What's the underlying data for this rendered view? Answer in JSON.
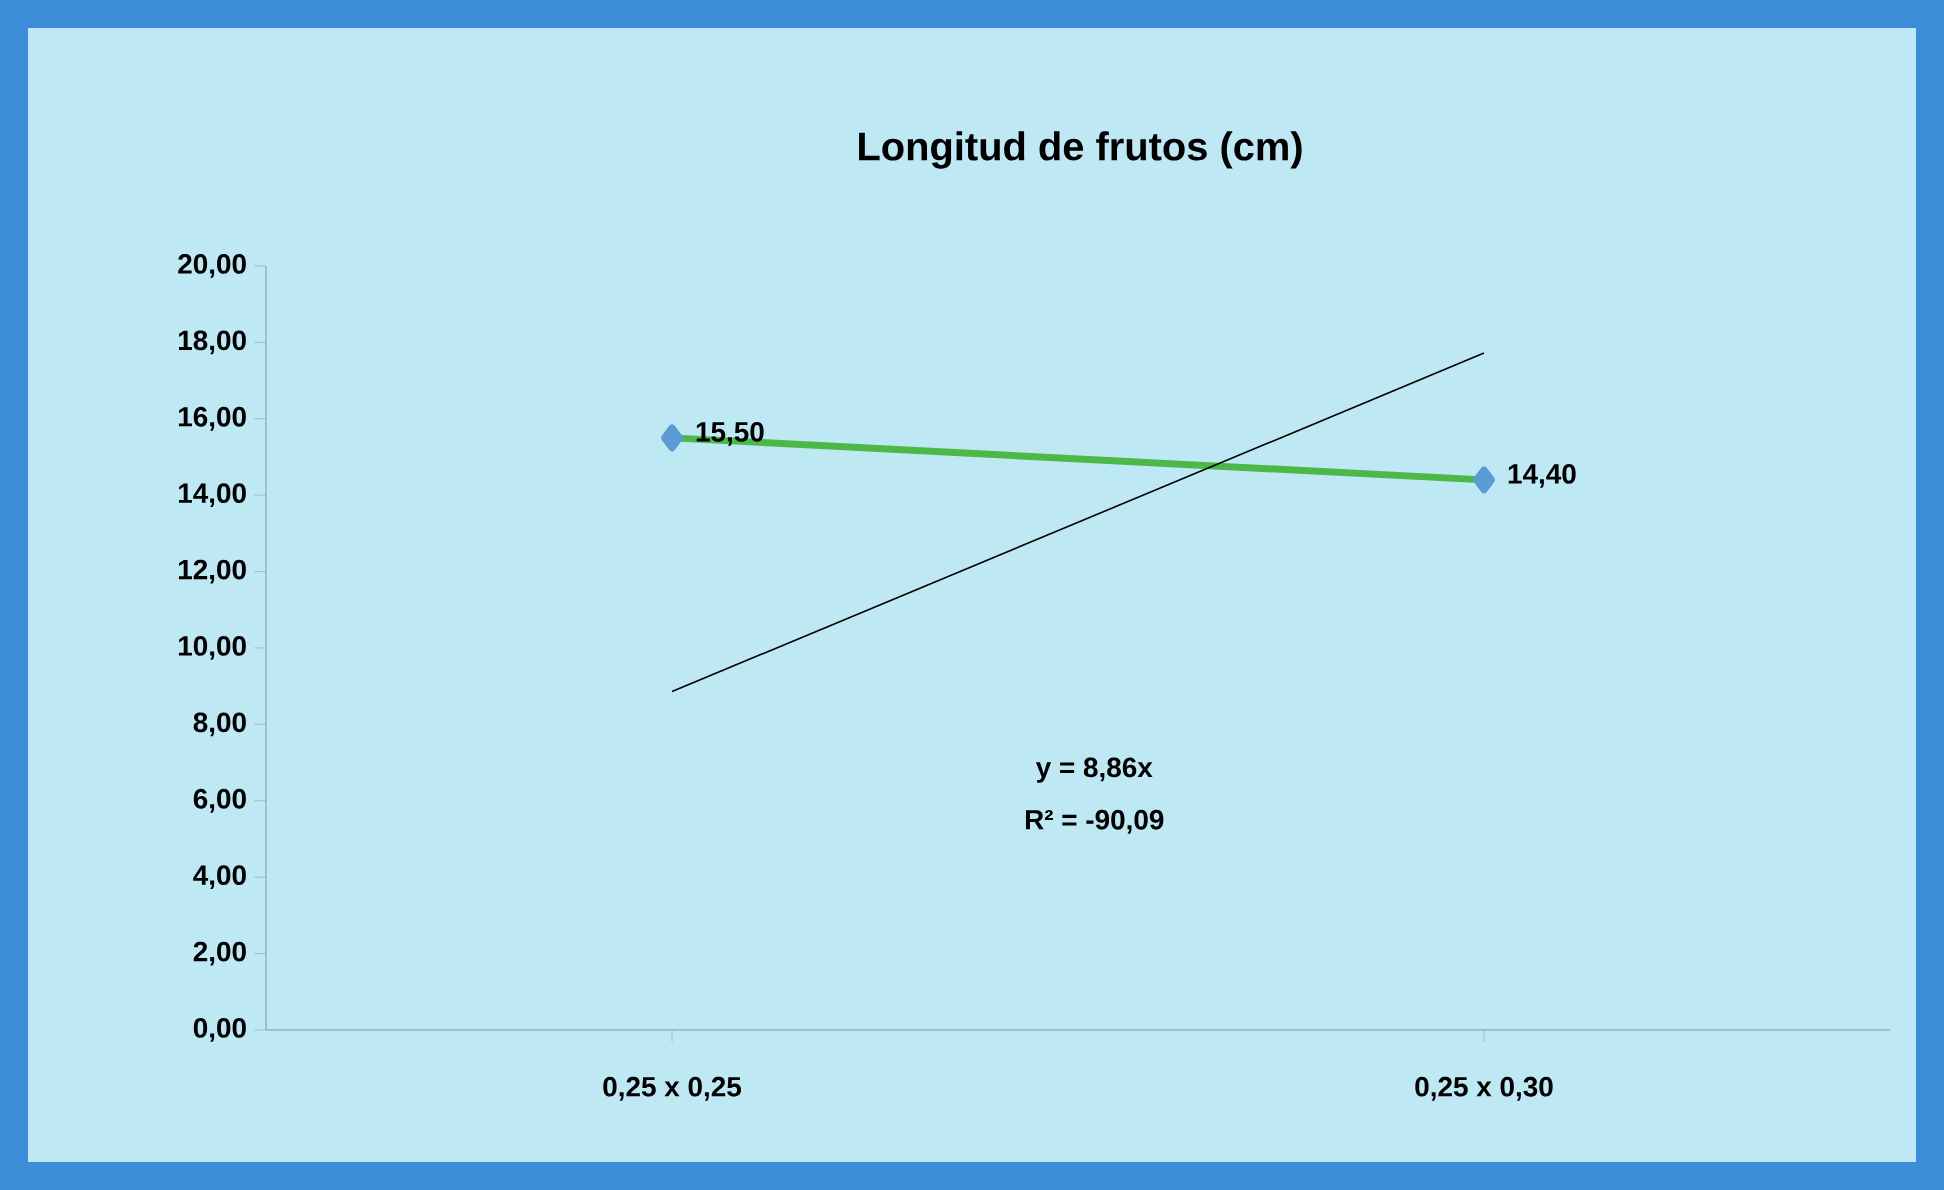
{
  "chart_data": {
    "type": "line",
    "title": "Longitud de frutos (cm)",
    "categories": [
      "0,25 x 0,25",
      "0,25 x 0,30"
    ],
    "series": [
      {
        "color": "#4cb848",
        "values": [
          15.5,
          14.4
        ],
        "marker": "diamond",
        "value_labels": [
          "15,50",
          "14,40"
        ]
      },
      {
        "type": "line",
        "color": "#000000",
        "values": [
          8.86,
          17.72
        ],
        "marker": "none"
      }
    ],
    "ylim": [
      0,
      20
    ],
    "yticks": [
      {
        "value": 0,
        "label": "0,00"
      },
      {
        "value": 2,
        "label": "2,00"
      },
      {
        "value": 4,
        "label": "4,00"
      },
      {
        "value": 6,
        "label": "6,00"
      },
      {
        "value": 8,
        "label": "8,00"
      },
      {
        "value": 10,
        "label": "10,00"
      },
      {
        "value": 12,
        "label": "12,00"
      },
      {
        "value": 14,
        "label": "14,00"
      },
      {
        "value": 16,
        "label": "16,00"
      },
      {
        "value": 18,
        "label": "18,00"
      },
      {
        "value": 20,
        "label": "20,00"
      }
    ],
    "annotations": [
      "y = 8,86x",
      "R² = -90,09"
    ],
    "grid": false
  }
}
